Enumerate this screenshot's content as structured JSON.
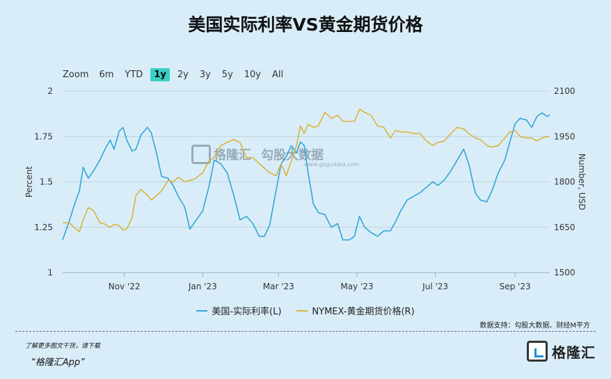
{
  "title": "美国实际利率VS黄金期货价格",
  "zoom": {
    "label": "Zoom",
    "options": [
      "6m",
      "YTD",
      "1y",
      "2y",
      "3y",
      "5y",
      "10y",
      "All"
    ],
    "active": "1y"
  },
  "legend": {
    "left_series": "美国-实际利率(L)",
    "right_series": "NYMEX-黄金期货价格(R)"
  },
  "source": "数据支持：勾股大数据、财经M平方",
  "footer": {
    "note": "了解更多图文干货，请下载",
    "app": "“格隆汇App”",
    "brand": "格隆汇"
  },
  "watermark": {
    "brand": "格隆汇",
    "brand2": "勾股大数据",
    "url": "www.gogudata.com"
  },
  "colors": {
    "rate": "#2ea6d8",
    "gold": "#d9b43c",
    "background": "#d9edf8",
    "active_zoom": "#39d1c4"
  },
  "chart_data": {
    "type": "line",
    "x_type": "date",
    "x_range": [
      "2022-09-14",
      "2023-09-28"
    ],
    "x_ticks": [
      {
        "date": "2022-11-01",
        "label": "Nov '22"
      },
      {
        "date": "2023-01-01",
        "label": "Jan '23"
      },
      {
        "date": "2023-03-01",
        "label": "Mar '23"
      },
      {
        "date": "2023-05-01",
        "label": "May '23"
      },
      {
        "date": "2023-07-01",
        "label": "Jul '23"
      },
      {
        "date": "2023-09-01",
        "label": "Sep '23"
      }
    ],
    "y_left": {
      "label": "Percent",
      "range": [
        1,
        2
      ],
      "ticks": [
        "1",
        "1.25",
        "1.5",
        "1.75",
        "2"
      ]
    },
    "y_right": {
      "label": "Number, USD",
      "range": [
        1500,
        2100
      ],
      "ticks": [
        "1500",
        "1650",
        "1800",
        "1950",
        "2100"
      ]
    },
    "grid": "horizontal",
    "legend_position": "bottom-center",
    "series": [
      {
        "name": "美国-实际利率(L)",
        "axis": "left",
        "points": [
          [
            "2022-09-14",
            1.18
          ],
          [
            "2022-09-19",
            1.28
          ],
          [
            "2022-09-23",
            1.37
          ],
          [
            "2022-09-27",
            1.45
          ],
          [
            "2022-09-30",
            1.58
          ],
          [
            "2022-10-04",
            1.52
          ],
          [
            "2022-10-08",
            1.56
          ],
          [
            "2022-10-13",
            1.62
          ],
          [
            "2022-10-17",
            1.68
          ],
          [
            "2022-10-21",
            1.73
          ],
          [
            "2022-10-24",
            1.68
          ],
          [
            "2022-10-28",
            1.78
          ],
          [
            "2022-10-31",
            1.8
          ],
          [
            "2022-11-03",
            1.73
          ],
          [
            "2022-11-07",
            1.67
          ],
          [
            "2022-11-10",
            1.68
          ],
          [
            "2022-11-14",
            1.76
          ],
          [
            "2022-11-19",
            1.8
          ],
          [
            "2022-11-22",
            1.77
          ],
          [
            "2022-11-26",
            1.66
          ],
          [
            "2022-11-30",
            1.53
          ],
          [
            "2022-12-05",
            1.52
          ],
          [
            "2022-12-09",
            1.48
          ],
          [
            "2022-12-13",
            1.42
          ],
          [
            "2022-12-18",
            1.36
          ],
          [
            "2022-12-22",
            1.24
          ],
          [
            "2022-12-26",
            1.28
          ],
          [
            "2023-01-01",
            1.34
          ],
          [
            "2023-01-06",
            1.48
          ],
          [
            "2023-01-10",
            1.62
          ],
          [
            "2023-01-15",
            1.6
          ],
          [
            "2023-01-20",
            1.55
          ],
          [
            "2023-01-25",
            1.43
          ],
          [
            "2023-01-30",
            1.29
          ],
          [
            "2023-02-04",
            1.31
          ],
          [
            "2023-02-09",
            1.27
          ],
          [
            "2023-02-14",
            1.2
          ],
          [
            "2023-02-18",
            1.2
          ],
          [
            "2023-02-22",
            1.26
          ],
          [
            "2023-02-27",
            1.45
          ],
          [
            "2023-03-03",
            1.6
          ],
          [
            "2023-03-07",
            1.64
          ],
          [
            "2023-03-11",
            1.7
          ],
          [
            "2023-03-15",
            1.66
          ],
          [
            "2023-03-18",
            1.72
          ],
          [
            "2023-03-21",
            1.7
          ],
          [
            "2023-03-24",
            1.55
          ],
          [
            "2023-03-28",
            1.38
          ],
          [
            "2023-04-01",
            1.33
          ],
          [
            "2023-04-06",
            1.32
          ],
          [
            "2023-04-11",
            1.25
          ],
          [
            "2023-04-16",
            1.27
          ],
          [
            "2023-04-20",
            1.18
          ],
          [
            "2023-04-25",
            1.18
          ],
          [
            "2023-04-29",
            1.2
          ],
          [
            "2023-05-03",
            1.31
          ],
          [
            "2023-05-07",
            1.25
          ],
          [
            "2023-05-12",
            1.22
          ],
          [
            "2023-05-17",
            1.2
          ],
          [
            "2023-05-22",
            1.23
          ],
          [
            "2023-05-27",
            1.23
          ],
          [
            "2023-05-31",
            1.28
          ],
          [
            "2023-06-04",
            1.34
          ],
          [
            "2023-06-09",
            1.4
          ],
          [
            "2023-06-14",
            1.42
          ],
          [
            "2023-06-19",
            1.44
          ],
          [
            "2023-06-24",
            1.47
          ],
          [
            "2023-06-29",
            1.5
          ],
          [
            "2023-07-03",
            1.48
          ],
          [
            "2023-07-08",
            1.51
          ],
          [
            "2023-07-13",
            1.56
          ],
          [
            "2023-07-18",
            1.62
          ],
          [
            "2023-07-23",
            1.68
          ],
          [
            "2023-07-27",
            1.6
          ],
          [
            "2023-08-01",
            1.44
          ],
          [
            "2023-08-05",
            1.4
          ],
          [
            "2023-08-10",
            1.39
          ],
          [
            "2023-08-14",
            1.45
          ],
          [
            "2023-08-19",
            1.55
          ],
          [
            "2023-08-24",
            1.62
          ],
          [
            "2023-08-28",
            1.72
          ],
          [
            "2023-09-01",
            1.82
          ],
          [
            "2023-09-05",
            1.85
          ],
          [
            "2023-09-10",
            1.84
          ],
          [
            "2023-09-14",
            1.8
          ],
          [
            "2023-09-18",
            1.86
          ],
          [
            "2023-09-22",
            1.88
          ],
          [
            "2023-09-26",
            1.86
          ],
          [
            "2023-09-28",
            1.87
          ]
        ]
      },
      {
        "name": "NYMEX-黄金期货价格(R)",
        "axis": "right",
        "points": [
          [
            "2022-09-14",
            1665
          ],
          [
            "2022-09-19",
            1665
          ],
          [
            "2022-09-23",
            1650
          ],
          [
            "2022-09-27",
            1635
          ],
          [
            "2022-09-30",
            1675
          ],
          [
            "2022-10-04",
            1715
          ],
          [
            "2022-10-08",
            1705
          ],
          [
            "2022-10-13",
            1665
          ],
          [
            "2022-10-17",
            1660
          ],
          [
            "2022-10-21",
            1650
          ],
          [
            "2022-10-24",
            1660
          ],
          [
            "2022-10-28",
            1655
          ],
          [
            "2022-10-31",
            1640
          ],
          [
            "2022-11-03",
            1645
          ],
          [
            "2022-11-07",
            1680
          ],
          [
            "2022-11-10",
            1755
          ],
          [
            "2022-11-14",
            1775
          ],
          [
            "2022-11-19",
            1755
          ],
          [
            "2022-11-22",
            1740
          ],
          [
            "2022-11-26",
            1755
          ],
          [
            "2022-11-30",
            1770
          ],
          [
            "2022-12-05",
            1805
          ],
          [
            "2022-12-09",
            1800
          ],
          [
            "2022-12-13",
            1815
          ],
          [
            "2022-12-18",
            1800
          ],
          [
            "2022-12-22",
            1805
          ],
          [
            "2022-12-26",
            1810
          ],
          [
            "2023-01-01",
            1830
          ],
          [
            "2023-01-06",
            1870
          ],
          [
            "2023-01-10",
            1880
          ],
          [
            "2023-01-15",
            1920
          ],
          [
            "2023-01-20",
            1930
          ],
          [
            "2023-01-25",
            1940
          ],
          [
            "2023-01-30",
            1930
          ],
          [
            "2023-02-04",
            1880
          ],
          [
            "2023-02-09",
            1880
          ],
          [
            "2023-02-14",
            1860
          ],
          [
            "2023-02-18",
            1845
          ],
          [
            "2023-02-22",
            1830
          ],
          [
            "2023-02-27",
            1820
          ],
          [
            "2023-03-03",
            1860
          ],
          [
            "2023-03-07",
            1820
          ],
          [
            "2023-03-11",
            1870
          ],
          [
            "2023-03-15",
            1920
          ],
          [
            "2023-03-18",
            1985
          ],
          [
            "2023-03-21",
            1960
          ],
          [
            "2023-03-24",
            1990
          ],
          [
            "2023-03-28",
            1980
          ],
          [
            "2023-04-01",
            1985
          ],
          [
            "2023-04-06",
            2030
          ],
          [
            "2023-04-11",
            2010
          ],
          [
            "2023-04-16",
            2020
          ],
          [
            "2023-04-20",
            2000
          ],
          [
            "2023-04-25",
            2000
          ],
          [
            "2023-04-29",
            2000
          ],
          [
            "2023-05-03",
            2040
          ],
          [
            "2023-05-07",
            2030
          ],
          [
            "2023-05-12",
            2020
          ],
          [
            "2023-05-17",
            1985
          ],
          [
            "2023-05-22",
            1980
          ],
          [
            "2023-05-27",
            1945
          ],
          [
            "2023-05-31",
            1970
          ],
          [
            "2023-06-04",
            1965
          ],
          [
            "2023-06-09",
            1965
          ],
          [
            "2023-06-14",
            1960
          ],
          [
            "2023-06-19",
            1960
          ],
          [
            "2023-06-24",
            1935
          ],
          [
            "2023-06-29",
            1920
          ],
          [
            "2023-07-03",
            1930
          ],
          [
            "2023-07-08",
            1935
          ],
          [
            "2023-07-13",
            1960
          ],
          [
            "2023-07-18",
            1980
          ],
          [
            "2023-07-23",
            1975
          ],
          [
            "2023-07-27",
            1960
          ],
          [
            "2023-08-01",
            1945
          ],
          [
            "2023-08-05",
            1940
          ],
          [
            "2023-08-10",
            1920
          ],
          [
            "2023-08-14",
            1915
          ],
          [
            "2023-08-19",
            1920
          ],
          [
            "2023-08-24",
            1945
          ],
          [
            "2023-08-28",
            1965
          ],
          [
            "2023-09-01",
            1970
          ],
          [
            "2023-09-05",
            1950
          ],
          [
            "2023-09-10",
            1945
          ],
          [
            "2023-09-14",
            1945
          ],
          [
            "2023-09-18",
            1935
          ],
          [
            "2023-09-22",
            1945
          ],
          [
            "2023-09-26",
            1950
          ],
          [
            "2023-09-28",
            1950
          ]
        ]
      }
    ]
  }
}
